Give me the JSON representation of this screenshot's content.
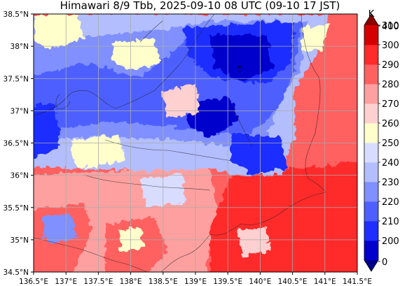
{
  "title": "Himawari 8/9 Tbb, 2025-09-10 08 UTC (09-10 17 JST)",
  "colorbar": {
    "unit": "K",
    "levels": [
      "0",
      "200",
      "210",
      "220",
      "230",
      "240",
      "250",
      "260",
      "270",
      "280",
      "290",
      "300",
      "310",
      "400"
    ],
    "colors": [
      "#00008b",
      "#0000cd",
      "#1e2eff",
      "#4d60ff",
      "#8090ff",
      "#b3beff",
      "#d8ddff",
      "#ffffcc",
      "#ffd0d0",
      "#ffa0a0",
      "#ff6060",
      "#ff2a2a",
      "#d40000",
      "#8b0000"
    ]
  },
  "axes": {
    "x_ticks": [
      "136.5°E",
      "137°E",
      "137.5°E",
      "138°E",
      "138.5°E",
      "139°E",
      "139.5°E",
      "140°E",
      "140.5°E",
      "141°E",
      "141.5°E"
    ],
    "y_ticks": [
      "34.5°N",
      "35°N",
      "35.5°N",
      "36°N",
      "36.5°N",
      "37°N",
      "37.5°N",
      "38°N",
      "38.5°N"
    ],
    "lon_range": [
      136.5,
      141.5
    ],
    "lat_range": [
      34.5,
      38.5
    ],
    "grid": true
  }
}
